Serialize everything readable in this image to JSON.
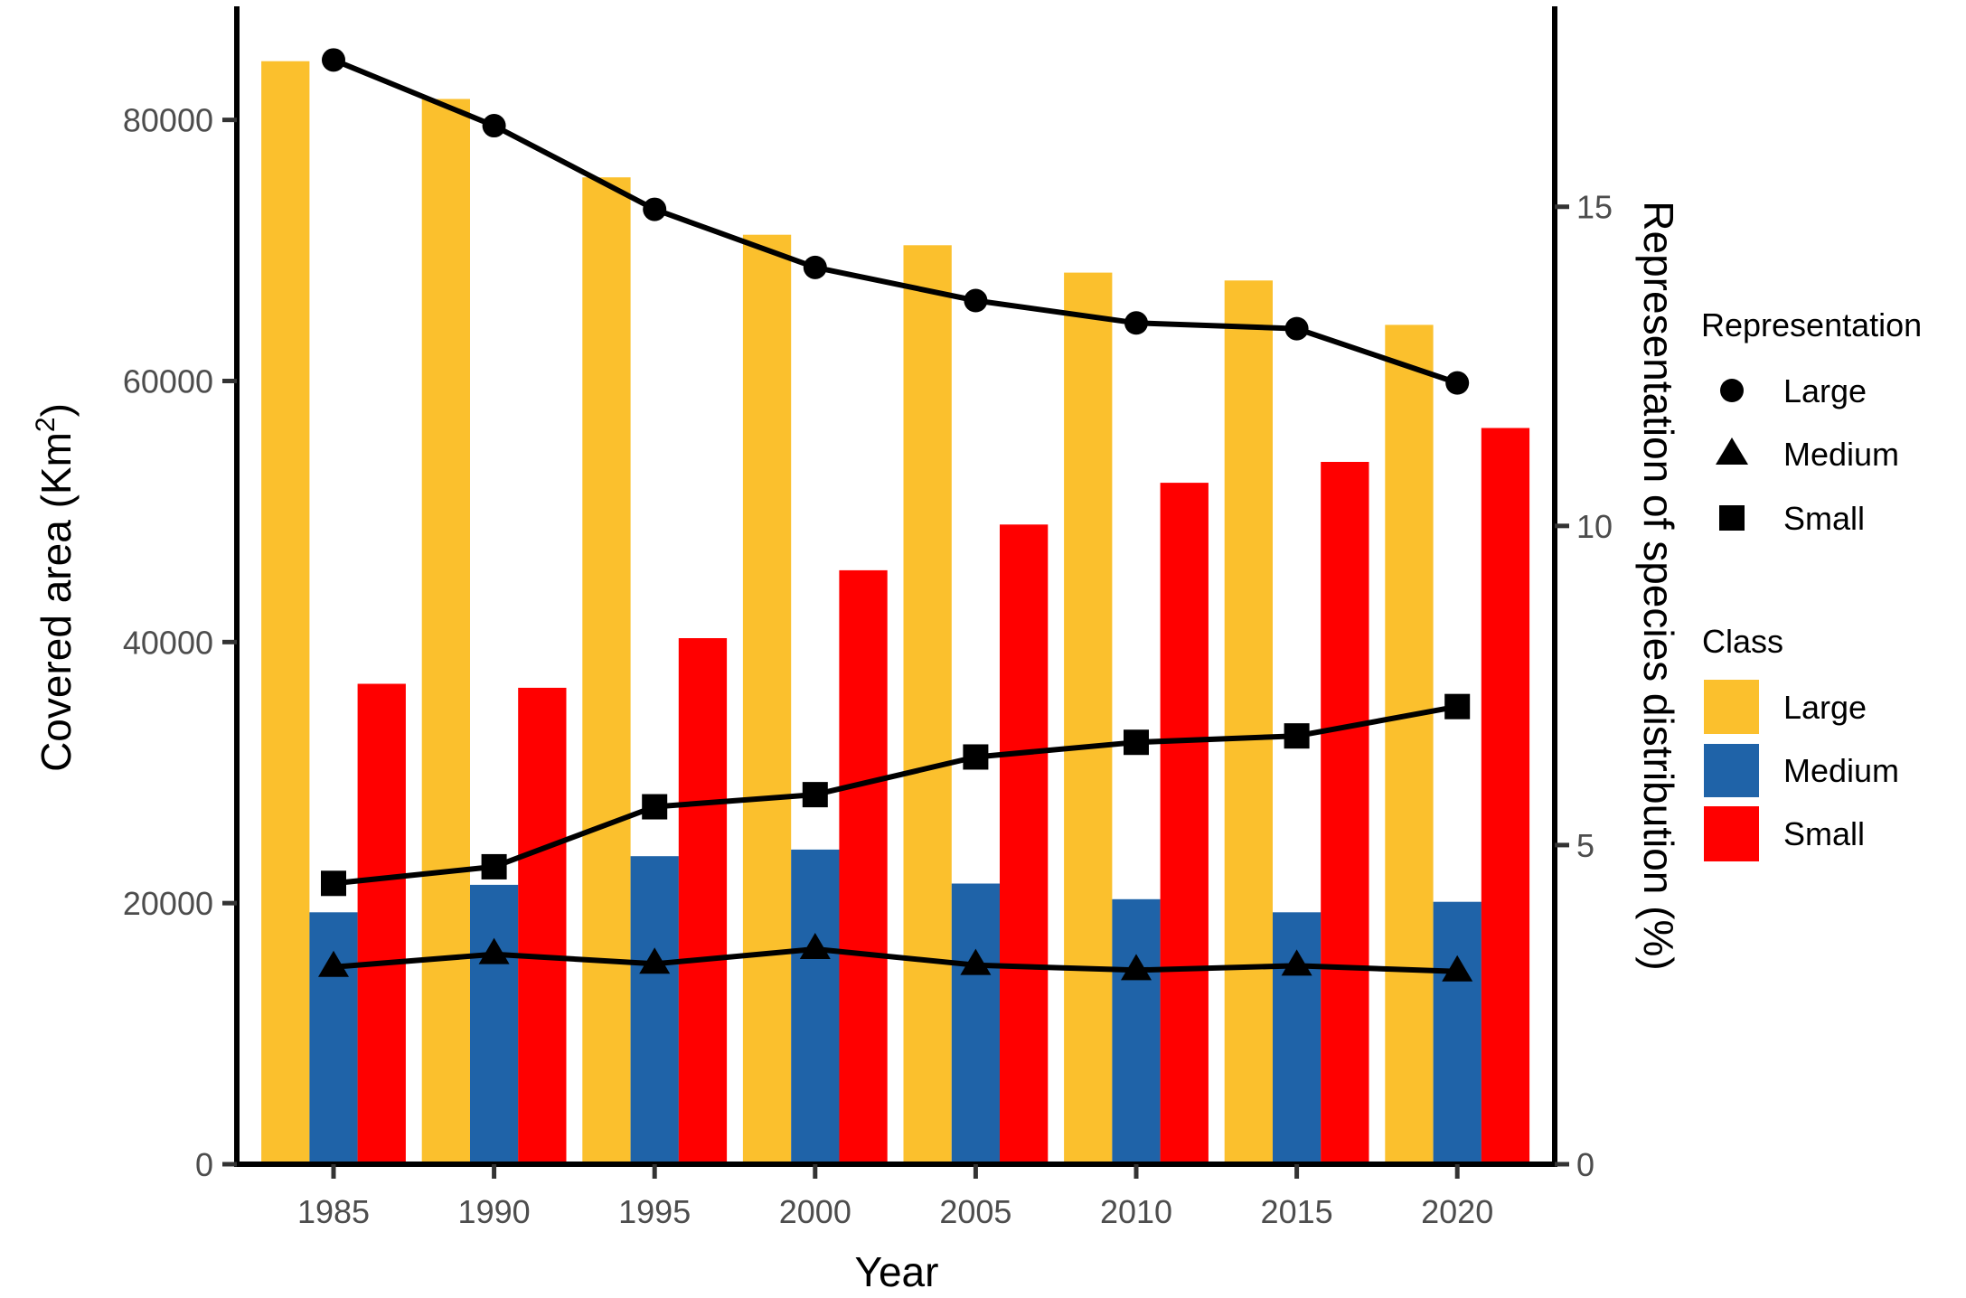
{
  "chart_data": {
    "type": "bar",
    "title": "",
    "xlabel": "Year",
    "ylabel": "Covered area (Km",
    "ylabel_superscript": "2",
    "ylabel_suffix": ")",
    "y2label": "Representation of species distribution (%)",
    "categories": [
      "1985",
      "1990",
      "1995",
      "2000",
      "2005",
      "2010",
      "2015",
      "2020"
    ],
    "ylim": [
      0,
      88700
    ],
    "y2lim": [
      0,
      18.14
    ],
    "yticks": [
      0,
      20000,
      40000,
      60000,
      80000
    ],
    "ytick_labels": [
      "0",
      "20000",
      "40000",
      "60000",
      "80000"
    ],
    "y2ticks": [
      0,
      5,
      10,
      15
    ],
    "y2tick_labels": [
      "0",
      "5",
      "10",
      "15"
    ],
    "grid": false,
    "bar_series": [
      {
        "name": "Large",
        "color": "#FBC02D",
        "values": [
          84500,
          81600,
          75600,
          71200,
          70400,
          68300,
          67700,
          64300
        ]
      },
      {
        "name": "Medium",
        "color": "#1F63A8",
        "values": [
          19300,
          21400,
          23600,
          24100,
          21500,
          20300,
          19300,
          20100
        ]
      },
      {
        "name": "Small",
        "color": "#FF0000",
        "values": [
          36800,
          36500,
          40300,
          45500,
          49000,
          52200,
          53800,
          56400
        ]
      }
    ],
    "line_series": [
      {
        "name": "Large",
        "marker": "circle",
        "axis": "right",
        "values": [
          17.3,
          16.27,
          14.96,
          14.05,
          13.53,
          13.18,
          13.09,
          12.24
        ]
      },
      {
        "name": "Medium",
        "marker": "triangle",
        "axis": "right",
        "values": [
          3.09,
          3.29,
          3.14,
          3.37,
          3.12,
          3.04,
          3.11,
          3.02
        ]
      },
      {
        "name": "Small",
        "marker": "square",
        "axis": "right",
        "values": [
          4.4,
          4.66,
          5.6,
          5.79,
          6.38,
          6.61,
          6.71,
          7.17
        ]
      }
    ],
    "legends": [
      {
        "title": "Representation",
        "placement": "right",
        "items": [
          {
            "label": "Large",
            "marker": "circle"
          },
          {
            "label": "Medium",
            "marker": "triangle"
          },
          {
            "label": "Small",
            "marker": "square"
          }
        ]
      },
      {
        "title": "Class",
        "placement": "right",
        "items": [
          {
            "label": "Large",
            "color": "#FBC02D"
          },
          {
            "label": "Medium",
            "color": "#1F63A8"
          },
          {
            "label": "Small",
            "color": "#FF0000"
          }
        ]
      }
    ]
  }
}
